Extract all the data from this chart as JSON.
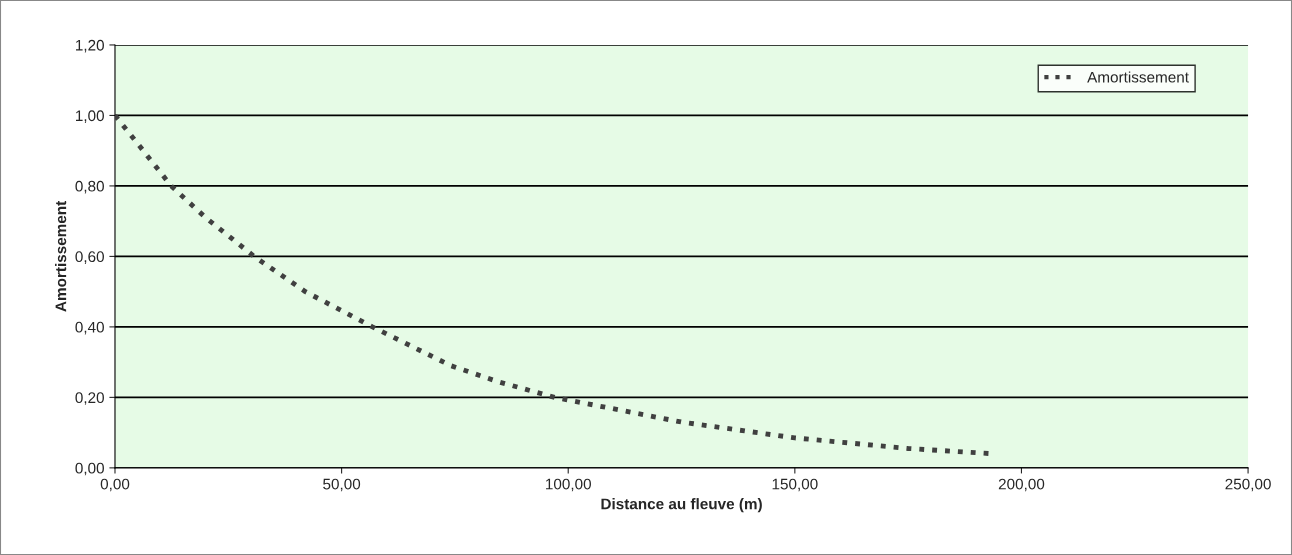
{
  "chart_data": {
    "type": "line",
    "xlabel": "Distance au fleuve (m)",
    "ylabel": "Amortissement",
    "x": [
      0,
      5,
      12.4,
      20,
      30.7,
      42,
      56.8,
      74.1,
      84.4,
      97,
      125,
      150,
      175,
      193.7
    ],
    "series": [
      {
        "name": "Amortissement",
        "color": "#404040",
        "values": [
          1.0,
          0.92,
          0.8,
          0.71,
          0.6,
          0.5,
          0.4,
          0.29,
          0.245,
          0.2,
          0.13,
          0.085,
          0.055,
          0.04
        ]
      }
    ],
    "xlim": [
      0,
      250
    ],
    "ylim": [
      0,
      1.2
    ],
    "xticks": [
      {
        "value": 0,
        "label": "0,00"
      },
      {
        "value": 50,
        "label": "50,00"
      },
      {
        "value": 100,
        "label": "100,00"
      },
      {
        "value": 150,
        "label": "150,00"
      },
      {
        "value": 200,
        "label": "200,00"
      },
      {
        "value": 250,
        "label": "250,00"
      }
    ],
    "yticks": [
      {
        "value": 0,
        "label": "0,00"
      },
      {
        "value": 0.2,
        "label": "0,20"
      },
      {
        "value": 0.4,
        "label": "0,40"
      },
      {
        "value": 0.6,
        "label": "0,60"
      },
      {
        "value": 0.8,
        "label": "0,80"
      },
      {
        "value": 1.0,
        "label": "1,00"
      },
      {
        "value": 1.2,
        "label": "1,20"
      }
    ],
    "grid": "y",
    "legend": "top right",
    "line_style": "dotted",
    "marker": "none"
  }
}
